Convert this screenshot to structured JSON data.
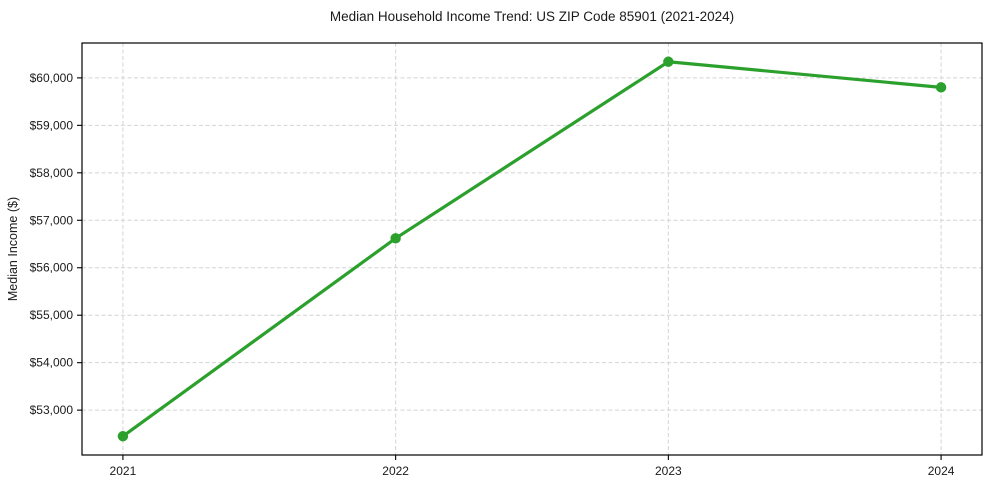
{
  "chart_data": {
    "type": "line",
    "title": "Median Household Income Trend: US ZIP Code 85901 (2021-2024)",
    "ylabel": "Median Income ($)",
    "xlabel": "",
    "categories": [
      "2021",
      "2022",
      "2023",
      "2024"
    ],
    "x": [
      2021,
      2022,
      2023,
      2024
    ],
    "values": [
      52450,
      56620,
      60340,
      59800
    ],
    "yticks": [
      53000,
      54000,
      55000,
      56000,
      57000,
      58000,
      59000,
      60000
    ],
    "ytick_labels": [
      "$53,000",
      "$54,000",
      "$55,000",
      "$56,000",
      "$57,000",
      "$58,000",
      "$59,000",
      "$60,000"
    ],
    "ylim": [
      52055,
      60735
    ],
    "xlim": [
      2020.85,
      2024.15
    ],
    "grid": true,
    "grid_style": "dashed",
    "legend": false,
    "line_color": "#2ca02c",
    "marker_color": "#2ca02c",
    "grid_color": "#d4d4d4",
    "spine_color": "#000000",
    "text_color": "#1a1a1a"
  }
}
